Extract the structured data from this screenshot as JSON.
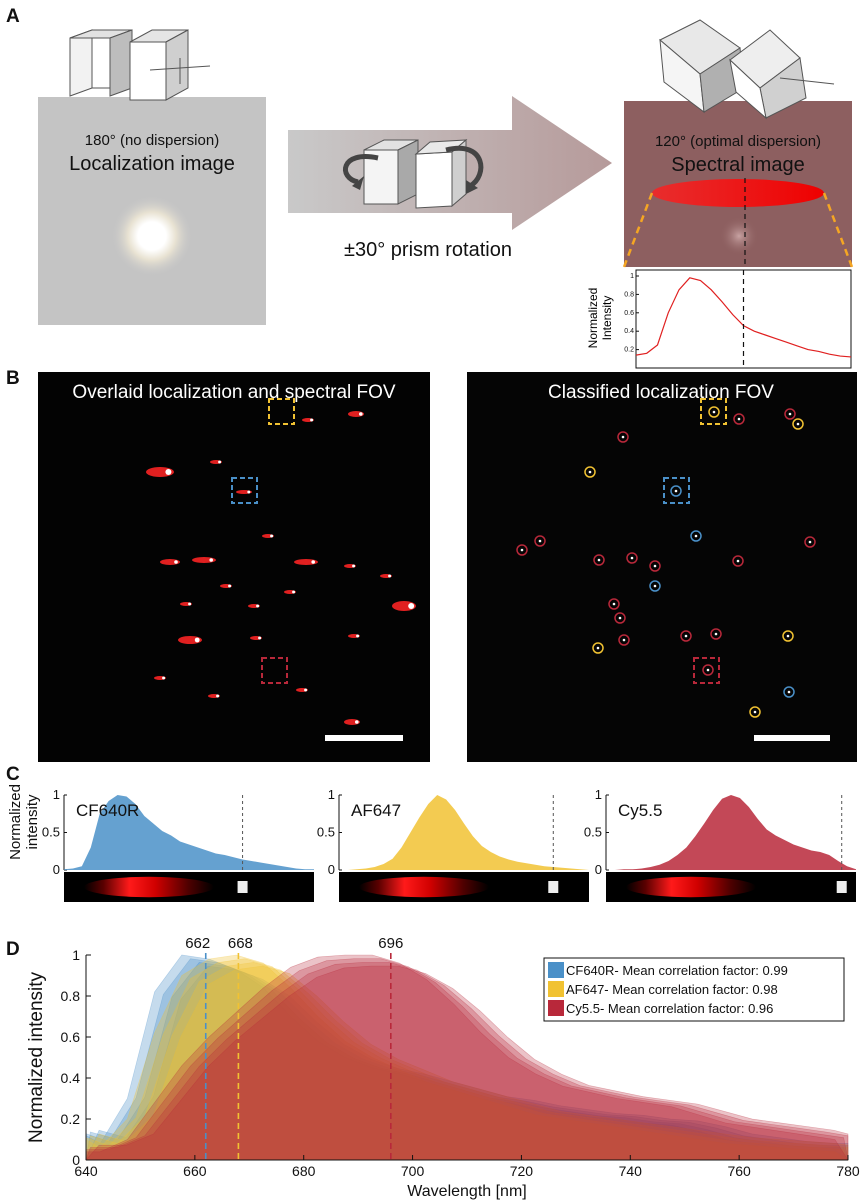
{
  "panels": {
    "a": {
      "label": "A",
      "left_title_small": "180° (no dispersion)",
      "left_title_big": "Localization image",
      "rotation_label": "±30° prism rotation",
      "right_title_small": "120° (optimal dispersion)",
      "right_title_big": "Spectral image",
      "inset_ylabel_1": "Normalized",
      "inset_ylabel_2": "Intensity",
      "inset_ticks": [
        "1",
        "0.8",
        "0.6",
        "0.4",
        "0.2"
      ]
    },
    "b": {
      "label": "B",
      "left_title": "Overlaid localization and spectral FOV",
      "right_title": "Classified localization FOV"
    },
    "c": {
      "label": "C",
      "ylabel_1": "Normalized",
      "ylabel_2": "intensity",
      "ticks": [
        "1",
        "0.5",
        "0"
      ],
      "dyes": [
        "CF640R",
        "AF647",
        "Cy5.5"
      ]
    },
    "d": {
      "label": "D",
      "peak_labels": [
        "662",
        "668",
        "696"
      ]
    }
  },
  "colors": {
    "cf640r": "#4a90c8",
    "af647": "#f1c232",
    "cy55": "#b8283a",
    "spectrum_red": "#e02020",
    "dashed_orange": "#f5a623"
  },
  "chart_data": [
    {
      "type": "line",
      "panel": "A-inset",
      "title": "",
      "xlabel": "",
      "ylabel": "Normalized Intensity",
      "ylim": [
        0,
        1
      ],
      "yticks": [
        0.2,
        0.4,
        0.6,
        0.8,
        1
      ],
      "marker_x": 0.5,
      "series": [
        {
          "x": [
            0,
            0.05,
            0.1,
            0.15,
            0.2,
            0.25,
            0.3,
            0.35,
            0.4,
            0.45,
            0.5,
            0.55,
            0.6,
            0.65,
            0.7,
            0.75,
            0.8,
            0.85,
            0.9,
            0.95,
            1.0
          ],
          "values": [
            0.14,
            0.16,
            0.25,
            0.6,
            0.85,
            0.98,
            0.95,
            0.85,
            0.72,
            0.58,
            0.46,
            0.4,
            0.36,
            0.32,
            0.28,
            0.24,
            0.2,
            0.18,
            0.15,
            0.13,
            0.12
          ]
        }
      ]
    },
    {
      "type": "area",
      "panel": "C",
      "title": "",
      "xlabel": "",
      "ylabel": "Normalized intensity",
      "ylim": [
        0,
        1
      ],
      "yticks": [
        0,
        0.5,
        1
      ],
      "x": [
        640,
        645,
        650,
        655,
        660,
        665,
        670,
        675,
        680,
        685,
        690,
        695,
        700,
        705,
        710,
        715,
        720,
        725,
        730,
        735,
        740,
        745,
        750,
        755,
        760,
        765,
        770,
        775,
        780
      ],
      "series": [
        {
          "name": "CF640R",
          "marker_x": 740,
          "values": [
            0.01,
            0.02,
            0.05,
            0.3,
            0.75,
            0.92,
            1.0,
            0.98,
            0.88,
            0.72,
            0.62,
            0.52,
            0.46,
            0.38,
            0.34,
            0.3,
            0.26,
            0.22,
            0.2,
            0.17,
            0.14,
            0.12,
            0.1,
            0.08,
            0.06,
            0.04,
            0.02,
            0.01,
            0.01
          ]
        },
        {
          "name": "AF647",
          "marker_x": 760,
          "values": [
            0.0,
            0.0,
            0.01,
            0.02,
            0.04,
            0.08,
            0.15,
            0.3,
            0.5,
            0.7,
            0.88,
            1.0,
            0.94,
            0.8,
            0.62,
            0.45,
            0.32,
            0.24,
            0.18,
            0.14,
            0.11,
            0.09,
            0.07,
            0.05,
            0.04,
            0.03,
            0.02,
            0.01,
            0.0
          ]
        },
        {
          "name": "Cy5.5",
          "marker_x": 772,
          "values": [
            0.0,
            0.0,
            0.01,
            0.01,
            0.02,
            0.04,
            0.07,
            0.12,
            0.2,
            0.3,
            0.45,
            0.62,
            0.8,
            0.95,
            1.0,
            0.96,
            0.84,
            0.68,
            0.54,
            0.46,
            0.4,
            0.34,
            0.3,
            0.26,
            0.24,
            0.2,
            0.12,
            0.05,
            0.01
          ]
        }
      ]
    },
    {
      "type": "area",
      "panel": "D",
      "title": "",
      "xlabel": "Wavelength [nm]",
      "ylabel": "Normalized intensity",
      "xlim": [
        640,
        780
      ],
      "ylim": [
        0,
        1
      ],
      "xticks": [
        640,
        660,
        680,
        700,
        720,
        740,
        760,
        780
      ],
      "yticks": [
        0,
        0.2,
        0.4,
        0.6,
        0.8,
        1
      ],
      "legend_position": "top-right",
      "reference_lines": [
        662,
        668,
        696
      ],
      "x": [
        640,
        645,
        650,
        655,
        660,
        665,
        670,
        675,
        680,
        685,
        690,
        695,
        700,
        705,
        710,
        715,
        720,
        725,
        730,
        735,
        740,
        745,
        750,
        755,
        760,
        765,
        770,
        775,
        780
      ],
      "series": [
        {
          "name": "CF640R- Mean correlation factor: 0.99",
          "peak": 662,
          "values": [
            0.12,
            0.08,
            0.3,
            0.82,
            1.0,
            0.98,
            0.93,
            0.84,
            0.7,
            0.58,
            0.5,
            0.45,
            0.42,
            0.38,
            0.34,
            0.3,
            0.28,
            0.25,
            0.23,
            0.21,
            0.2,
            0.18,
            0.17,
            0.14,
            0.1,
            0.08,
            0.06,
            0.05,
            0.05
          ]
        },
        {
          "name": "AF647- Mean correlation factor: 0.98",
          "peak": 668,
          "values": [
            0.1,
            0.06,
            0.2,
            0.62,
            0.9,
            0.98,
            1.0,
            0.96,
            0.84,
            0.7,
            0.58,
            0.5,
            0.44,
            0.38,
            0.34,
            0.3,
            0.26,
            0.22,
            0.2,
            0.18,
            0.16,
            0.14,
            0.12,
            0.1,
            0.08,
            0.07,
            0.06,
            0.05,
            0.04
          ]
        },
        {
          "name": "Cy5.5- Mean correlation factor: 0.96",
          "peak": 696,
          "values": [
            0.04,
            0.04,
            0.1,
            0.28,
            0.46,
            0.6,
            0.72,
            0.84,
            0.94,
            0.99,
            1.0,
            1.0,
            0.96,
            0.88,
            0.76,
            0.62,
            0.5,
            0.42,
            0.36,
            0.33,
            0.3,
            0.28,
            0.26,
            0.22,
            0.18,
            0.16,
            0.14,
            0.12,
            0.1
          ]
        }
      ]
    }
  ]
}
